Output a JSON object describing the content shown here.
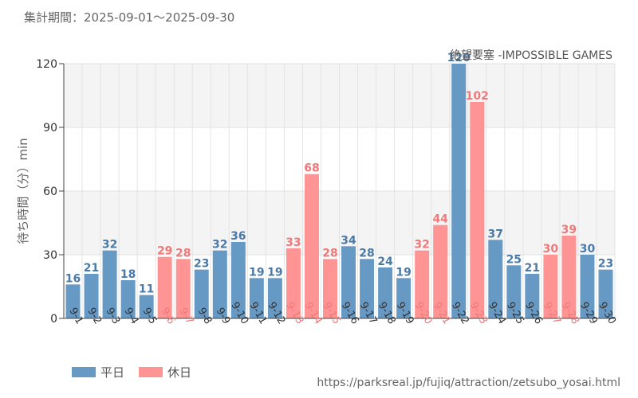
{
  "period_label": "集計期間：2025-09-01～2025-09-30",
  "source_url": "https://parksreal.jp/fujiq/attraction/zetsubo_yosai.html",
  "colors": {
    "weekday": "#6699c4",
    "holiday": "#ff9494",
    "weekday_text": "#4a7aa8",
    "holiday_text": "#f07878"
  },
  "legend": [
    {
      "label": "平日",
      "kind": "weekday"
    },
    {
      "label": "休日",
      "kind": "holiday"
    }
  ],
  "chart_data": {
    "type": "bar",
    "title": "絶望要塞 -IMPOSSIBLE GAMES",
    "xlabel": "",
    "ylabel": "待ち時間（分）min",
    "ylim": [
      0,
      120
    ],
    "yticks": [
      0,
      30,
      60,
      90,
      120
    ],
    "grid": true,
    "categories": [
      "9-1",
      "9-2",
      "9-3",
      "9-4",
      "9-5",
      "9-6",
      "9-7",
      "9-8",
      "9-9",
      "9-10",
      "9-11",
      "9-12",
      "9-13",
      "9-14",
      "9-15",
      "9-16",
      "9-17",
      "9-18",
      "9-19",
      "9-20",
      "9-21",
      "9-22",
      "9-23",
      "9-24",
      "9-25",
      "9-26",
      "9-27",
      "9-28",
      "9-29",
      "9-30"
    ],
    "values": [
      16,
      21,
      32,
      18,
      11,
      29,
      28,
      23,
      32,
      36,
      19,
      19,
      33,
      68,
      28,
      34,
      28,
      24,
      19,
      32,
      44,
      120,
      102,
      37,
      25,
      21,
      30,
      39,
      30,
      23
    ],
    "day_type": [
      "weekday",
      "weekday",
      "weekday",
      "weekday",
      "weekday",
      "holiday",
      "holiday",
      "weekday",
      "weekday",
      "weekday",
      "weekday",
      "weekday",
      "holiday",
      "holiday",
      "holiday",
      "weekday",
      "weekday",
      "weekday",
      "weekday",
      "holiday",
      "holiday",
      "weekday",
      "holiday",
      "weekday",
      "weekday",
      "weekday",
      "holiday",
      "holiday",
      "weekday",
      "weekday"
    ]
  }
}
